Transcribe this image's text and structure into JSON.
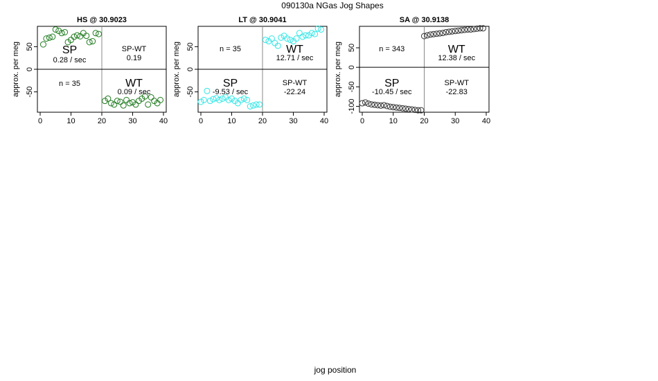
{
  "page": {
    "title": "090130a   NGas Jog Shapes",
    "xlabel": "jog position"
  },
  "chart_data": [
    {
      "type": "scatter",
      "title": "HS @ 30.9023",
      "ylabel": "approx. per meg",
      "xlim": [
        0,
        40
      ],
      "ylim": [
        -95,
        95
      ],
      "xticks": [
        0,
        10,
        20,
        30,
        40
      ],
      "yticks": [
        -50,
        0,
        50
      ],
      "split_x": 20,
      "split_y": 0,
      "color": "#1e7b1e",
      "labels": {
        "sp": "SP",
        "sp_rate": "0.28 / sec",
        "spwt": "SP-WT",
        "spwt_val": "0.19",
        "n": "n = 35",
        "wt": "WT",
        "wt_rate": "0.09 / sec"
      },
      "sp_points": {
        "x": [
          1,
          2,
          3,
          4,
          5,
          6,
          7,
          8,
          9,
          10,
          11,
          12,
          13,
          14,
          15,
          16,
          17,
          18,
          19
        ],
        "y": [
          55,
          68,
          70,
          72,
          88,
          85,
          80,
          82,
          60,
          65,
          72,
          75,
          73,
          80,
          74,
          60,
          62,
          80,
          78
        ]
      },
      "wt_points": {
        "x": [
          21,
          22,
          23,
          24,
          25,
          26,
          27,
          28,
          29,
          30,
          31,
          32,
          33,
          34,
          35,
          36,
          37,
          38,
          39
        ],
        "y": [
          -70,
          -65,
          -75,
          -78,
          -70,
          -72,
          -80,
          -68,
          -75,
          -73,
          -78,
          -70,
          -65,
          -60,
          -78,
          -62,
          -70,
          -75,
          -68
        ]
      }
    },
    {
      "type": "scatter",
      "title": "LT @ 30.9041",
      "ylabel": "approx. per meg",
      "xlim": [
        0,
        40
      ],
      "ylim": [
        -95,
        95
      ],
      "xticks": [
        0,
        10,
        20,
        30,
        40
      ],
      "yticks": [
        -50,
        0,
        50
      ],
      "split_x": 20,
      "split_y": 0,
      "color": "#33e6e6",
      "labels": {
        "n": "n = 35",
        "wt": "WT",
        "wt_rate": "12.71 / sec",
        "sp": "SP",
        "sp_rate": "-9.53 / sec",
        "spwt": "SP-WT",
        "spwt_val": "-22.24"
      },
      "sp_points": {
        "x": [
          0,
          1,
          2,
          3,
          4,
          5,
          6,
          7,
          8,
          9,
          10,
          11,
          12,
          13,
          14,
          15,
          16,
          17,
          18,
          19
        ],
        "y": [
          -72,
          -68,
          -48,
          -70,
          -66,
          -64,
          -68,
          -65,
          -62,
          -68,
          -65,
          -70,
          -75,
          -68,
          -65,
          -68,
          -82,
          -80,
          -78,
          -78
        ]
      },
      "wt_points": {
        "x": [
          21,
          22,
          23,
          24,
          25,
          26,
          27,
          28,
          29,
          30,
          31,
          32,
          33,
          34,
          35,
          36,
          37,
          38,
          39
        ],
        "y": [
          65,
          62,
          68,
          58,
          52,
          70,
          74,
          68,
          65,
          62,
          68,
          80,
          72,
          75,
          75,
          80,
          78,
          90,
          88
        ]
      }
    },
    {
      "type": "scatter",
      "title": "SA @ 30.9138",
      "ylabel": "approx. per meg",
      "xlim": [
        0,
        40
      ],
      "ylim": [
        -115,
        105
      ],
      "xticks": [
        0,
        10,
        20,
        30,
        40
      ],
      "yticks": [
        -100,
        -50,
        0,
        50
      ],
      "split_x": 20,
      "split_y": 0,
      "color": "#333333",
      "labels": {
        "n": "n = 343",
        "wt": "WT",
        "wt_rate": "12.38 / sec",
        "sp": "SP",
        "sp_rate": "-10.45 / sec",
        "spwt": "SP-WT",
        "spwt_val": "-22.83"
      },
      "sp_points": {
        "x": [
          0,
          1,
          2,
          3,
          4,
          5,
          6,
          7,
          8,
          9,
          10,
          11,
          12,
          13,
          14,
          15,
          16,
          17,
          18,
          19
        ],
        "y": [
          -92,
          -90,
          -93,
          -95,
          -96,
          -97,
          -98,
          -97,
          -99,
          -101,
          -102,
          -103,
          -104,
          -105,
          -106,
          -107,
          -108,
          -109,
          -110,
          -110
        ]
      },
      "wt_points": {
        "x": [
          20,
          21,
          22,
          23,
          24,
          25,
          26,
          27,
          28,
          29,
          30,
          31,
          32,
          33,
          34,
          35,
          36,
          37,
          38,
          39
        ],
        "y": [
          80,
          82,
          84,
          85,
          86,
          87,
          88,
          90,
          91,
          92,
          93,
          94,
          95,
          96,
          97,
          97,
          98,
          99,
          100,
          100
        ]
      }
    }
  ]
}
